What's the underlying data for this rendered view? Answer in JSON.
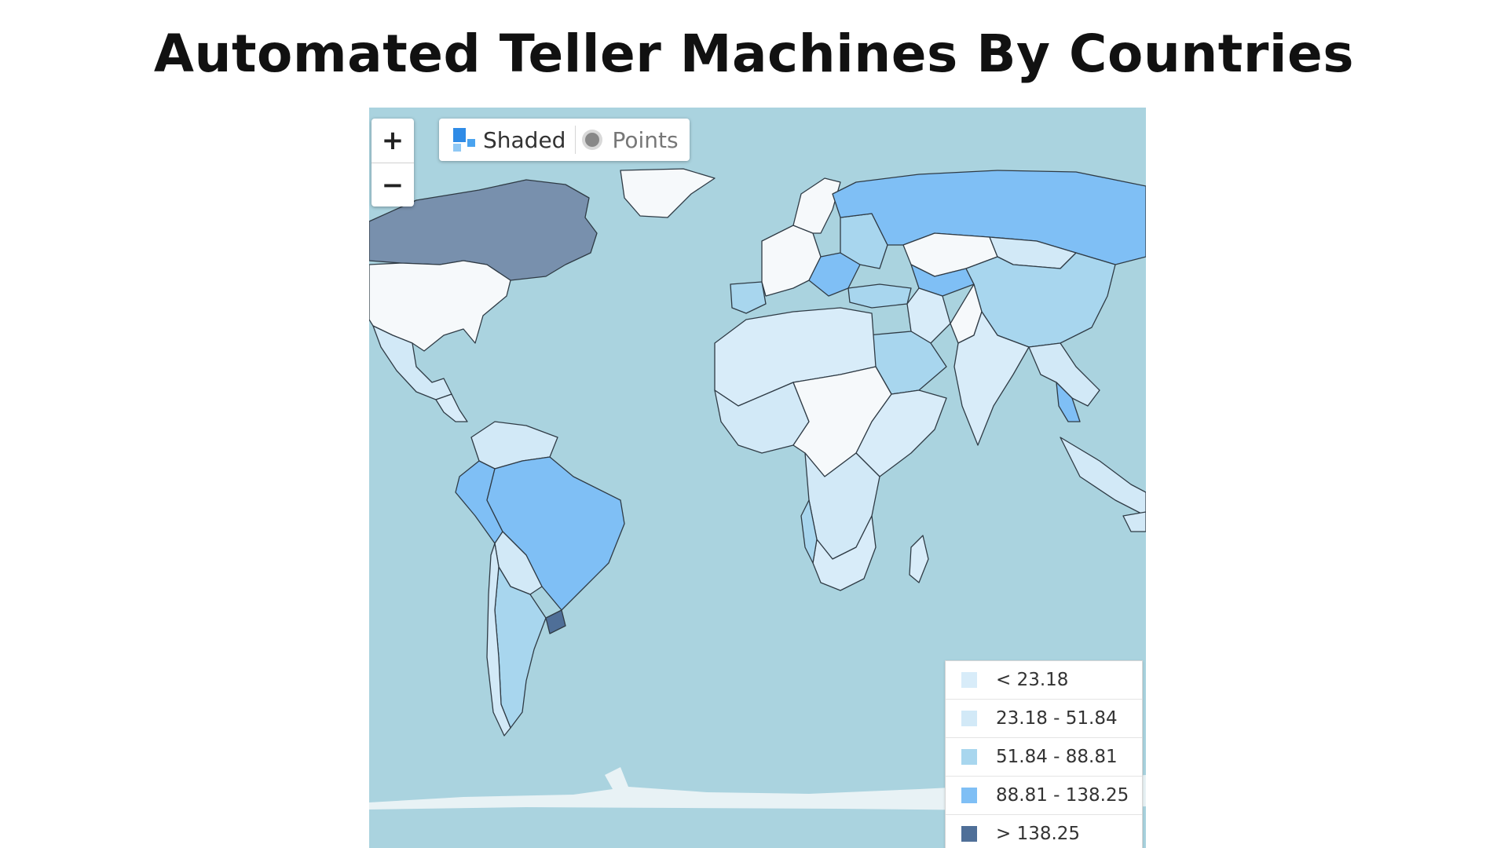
{
  "title": "Automated Teller Machines By Countries",
  "zoom": {
    "in_label": "+",
    "out_label": "−"
  },
  "mode_toggle": {
    "options": [
      {
        "label": "Shaded",
        "icon": "shaded-squares-icon",
        "active": true
      },
      {
        "label": "Points",
        "icon": "points-dot-icon",
        "active": false
      }
    ]
  },
  "colors": {
    "ocean": "#aad3df",
    "land_no_data": "#f6f9fb",
    "border": "#2f3b45",
    "antarctica": "#e8f2f5"
  },
  "legend": [
    {
      "label": "< 23.18",
      "color": "#d8ecf9"
    },
    {
      "label": "23.18 - 51.84",
      "color": "#d2e9f7"
    },
    {
      "label": "51.84 - 88.81",
      "color": "#a8d6ee"
    },
    {
      "label": "88.81 - 138.25",
      "color": "#7fbff5"
    },
    {
      "label": "> 138.25",
      "color": "#4f6f98"
    }
  ]
}
